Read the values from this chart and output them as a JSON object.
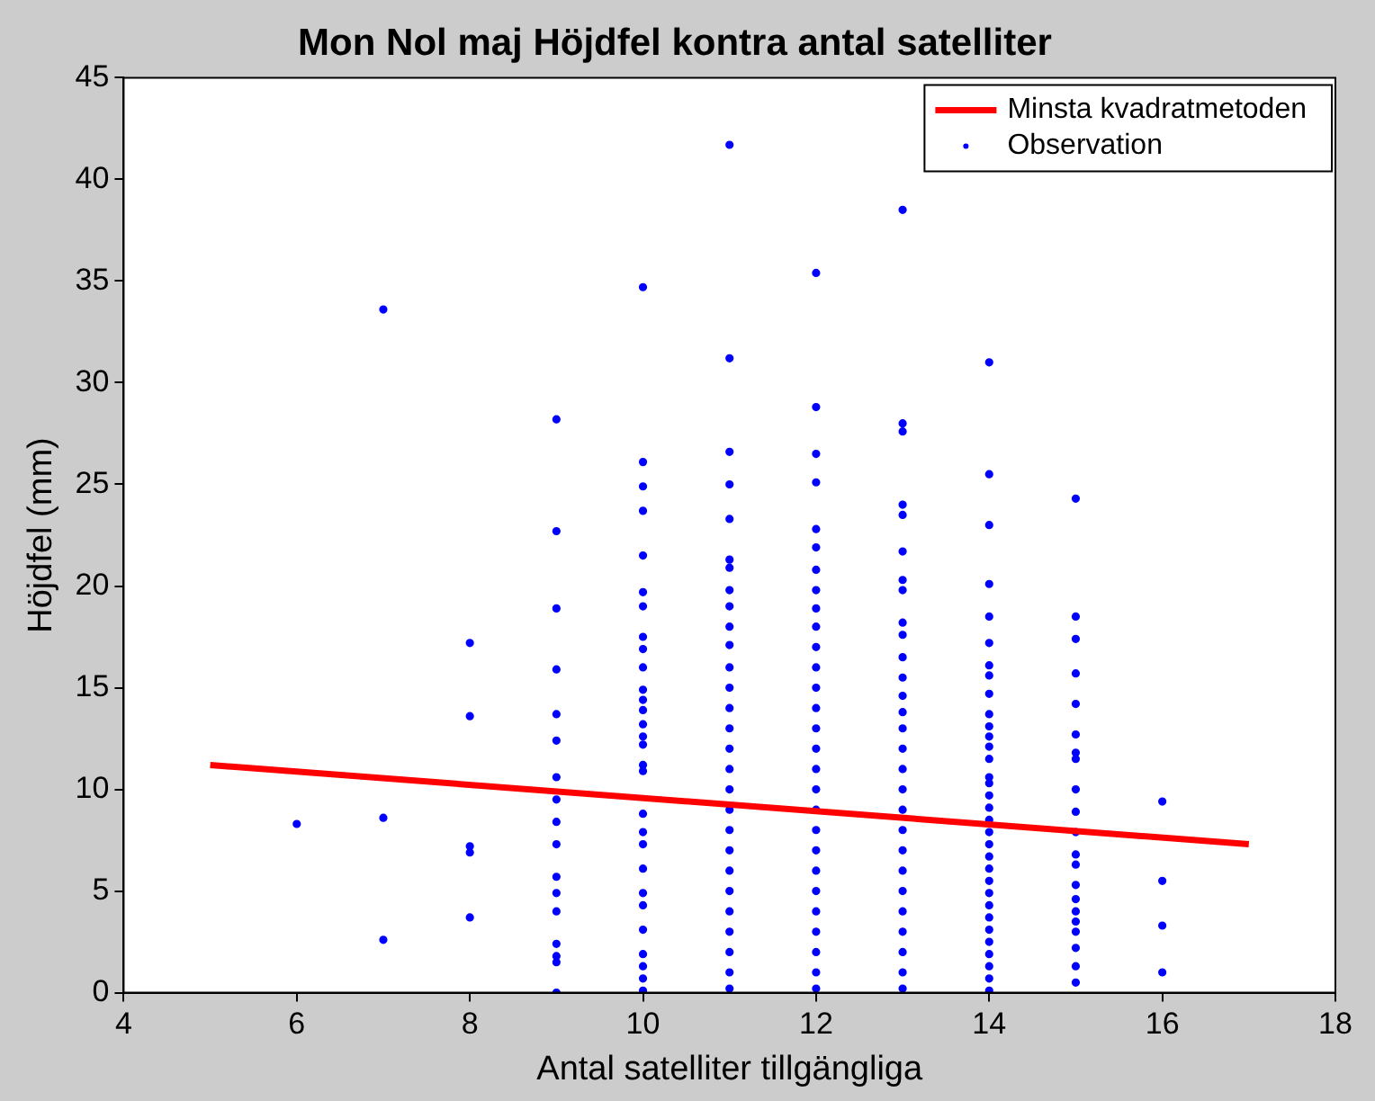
{
  "chart_data": {
    "type": "scatter",
    "title": "Mon Nol maj Höjdfel kontra antal satelliter",
    "xlabel": "Antal satelliter tillgängliga",
    "ylabel": "Höjdfel (mm)",
    "xlim": [
      4,
      18
    ],
    "xticks": [
      4,
      6,
      8,
      10,
      12,
      14,
      16,
      18
    ],
    "ylim": [
      0,
      45
    ],
    "yticks": [
      0,
      5,
      10,
      15,
      20,
      25,
      30,
      35,
      40,
      45
    ],
    "grid": false,
    "legend": "top right",
    "series": [
      {
        "name": "Minsta kvadratmetoden",
        "type": "line",
        "color": "#ff0000",
        "marker": "none",
        "line_style": "solid",
        "x": [
          5,
          17
        ],
        "values": [
          11.2,
          7.3
        ]
      },
      {
        "name": "Observation",
        "type": "scatter",
        "color": "#0000ff",
        "marker": "circle",
        "x": [
          6,
          7,
          7,
          7,
          8,
          8,
          8,
          8,
          8,
          9,
          9,
          9,
          9,
          9,
          9,
          9,
          9,
          9,
          9,
          9,
          9,
          9,
          9,
          9,
          9,
          9,
          10,
          10,
          10,
          10,
          10,
          10,
          10,
          10,
          10,
          10,
          10,
          10,
          10,
          10,
          10,
          10,
          10,
          10,
          10,
          10,
          10,
          10,
          10,
          10,
          10,
          10,
          10,
          10,
          10,
          11,
          11,
          11,
          11,
          11,
          11,
          11,
          11,
          11,
          11,
          11,
          11,
          11,
          11,
          11,
          11,
          11,
          11,
          11,
          11,
          11,
          11,
          11,
          11,
          11,
          11,
          11,
          11,
          12,
          12,
          12,
          12,
          12,
          12,
          12,
          12,
          12,
          12,
          12,
          12,
          12,
          12,
          12,
          12,
          12,
          12,
          12,
          12,
          12,
          12,
          12,
          12,
          12,
          12,
          12,
          12,
          13,
          13,
          13,
          13,
          13,
          13,
          13,
          13,
          13,
          13,
          13,
          13,
          13,
          13,
          13,
          13,
          13,
          13,
          13,
          13,
          13,
          13,
          13,
          13,
          13,
          13,
          13,
          13,
          14,
          14,
          14,
          14,
          14,
          14,
          14,
          14,
          14,
          14,
          14,
          14,
          14,
          14,
          14,
          14,
          14,
          14,
          14,
          14,
          14,
          14,
          14,
          14,
          14,
          14,
          14,
          14,
          14,
          14,
          14,
          14,
          14,
          15,
          15,
          15,
          15,
          15,
          15,
          15,
          15,
          15,
          15,
          15,
          15,
          15,
          15,
          15,
          15,
          15,
          15,
          15,
          15,
          15,
          16,
          16,
          16,
          16
        ],
        "values": [
          8.3,
          33.6,
          8.6,
          2.6,
          17.2,
          13.6,
          7.2,
          6.9,
          3.7,
          28.2,
          22.7,
          18.9,
          15.9,
          13.7,
          12.4,
          10.6,
          9.5,
          8.4,
          7.3,
          5.7,
          4.9,
          4.0,
          2.4,
          1.8,
          1.5,
          0,
          34.7,
          26.1,
          24.9,
          23.7,
          21.5,
          19.7,
          19.0,
          17.5,
          16.9,
          16.0,
          14.9,
          14.4,
          13.9,
          13.2,
          12.6,
          12.2,
          11.2,
          10.9,
          8.8,
          7.9,
          7.3,
          6.1,
          4.9,
          4.3,
          3.1,
          1.9,
          1.3,
          0.7,
          0.1,
          41.7,
          31.2,
          26.6,
          25.0,
          23.3,
          21.3,
          20.9,
          19.8,
          19.0,
          18.0,
          17.1,
          16.0,
          15.0,
          14.0,
          13.0,
          12.0,
          11.0,
          10.0,
          9.0,
          8.0,
          7.0,
          6.0,
          5.0,
          4.0,
          3.0,
          2.0,
          1.0,
          0.2,
          35.4,
          28.8,
          26.5,
          25.1,
          22.8,
          21.9,
          20.8,
          19.8,
          18.9,
          18.0,
          17.0,
          16.0,
          15.0,
          14.0,
          13.0,
          12.0,
          11.0,
          10.0,
          9.0,
          8.0,
          7.0,
          6.0,
          5.0,
          4.0,
          3.0,
          2.0,
          1.0,
          0.2,
          38.5,
          28.0,
          27.6,
          24.0,
          23.5,
          21.7,
          20.3,
          19.8,
          18.2,
          17.6,
          16.5,
          15.5,
          14.6,
          13.8,
          13.0,
          12.0,
          11.0,
          10.0,
          9.0,
          8.0,
          7.0,
          6.0,
          5.0,
          4.0,
          3.0,
          2.0,
          1.0,
          0.2,
          31.0,
          25.5,
          23.0,
          20.1,
          18.5,
          17.2,
          16.1,
          15.6,
          14.7,
          13.7,
          13.1,
          12.6,
          12.1,
          11.5,
          10.6,
          10.3,
          9.7,
          9.1,
          8.5,
          7.9,
          7.3,
          6.7,
          6.1,
          5.5,
          4.9,
          4.3,
          3.7,
          3.1,
          2.5,
          1.9,
          1.3,
          0.7,
          0.1,
          24.3,
          18.5,
          17.4,
          15.7,
          14.2,
          12.7,
          11.8,
          11.5,
          10.0,
          8.9,
          7.9,
          6.8,
          6.3,
          5.3,
          4.6,
          4.0,
          3.5,
          3.0,
          2.2,
          1.3,
          0.5,
          9.4,
          5.5,
          3.3,
          1.0
        ]
      }
    ]
  }
}
